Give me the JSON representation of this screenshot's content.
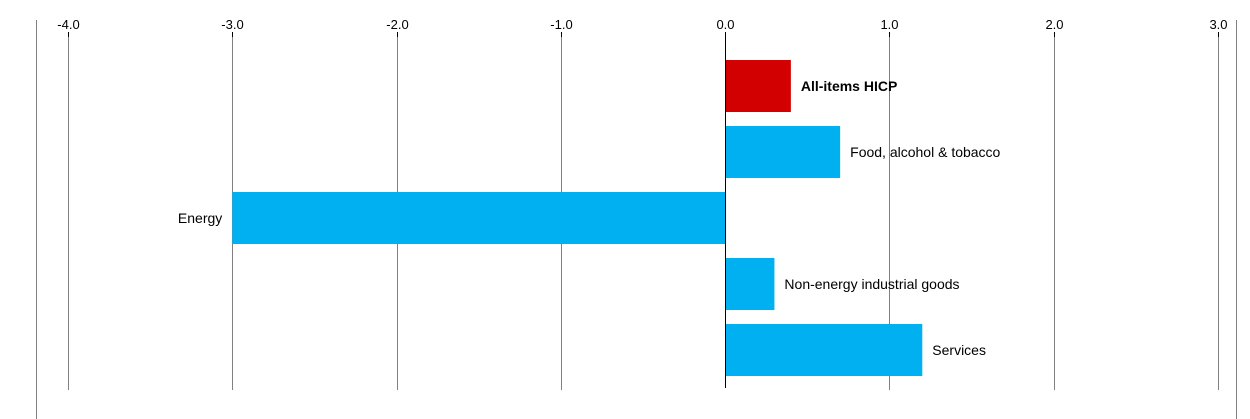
{
  "chart_data": {
    "type": "bar",
    "orientation": "horizontal",
    "categories": [
      "All-items HICP",
      "Food, alcohol & tobacco",
      "Energy",
      "Non-energy industrial goods",
      "Services"
    ],
    "values": [
      0.4,
      0.7,
      -3.0,
      0.3,
      1.2
    ],
    "highlight": "All-items HICP",
    "colors": {
      "highlight": "#d20000",
      "default": "#00b0f0",
      "grid": "#808080",
      "frame": "#808080"
    },
    "xlim": [
      -4.0,
      3.0
    ],
    "xticks": [
      "-4.0",
      "-3.0",
      "-2.0",
      "-1.0",
      "0.0",
      "1.0",
      "2.0",
      "3.0"
    ],
    "grid": true,
    "axis_position": "top"
  }
}
